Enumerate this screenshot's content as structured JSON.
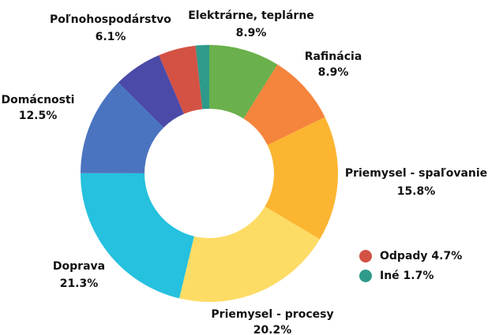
{
  "chart_data": {
    "type": "donut",
    "categories": [
      "Elektrárne, teplárne",
      "Rafinácia",
      "Priemysel - spaľovanie",
      "Priemysel - procesy",
      "Doprava",
      "Domácnosti",
      "Poľnohospodárstvo",
      "Odpady",
      "Iné"
    ],
    "values": [
      8.9,
      8.9,
      15.8,
      20.2,
      21.3,
      12.5,
      6.1,
      4.7,
      1.7
    ],
    "value_labels": [
      "8.9%",
      "8.9%",
      "15.8%",
      "20.2%",
      "21.3%",
      "12.5%",
      "6.1%",
      "4.7%",
      "1.7%"
    ],
    "colors": [
      "#6ab04c",
      "#f5843c",
      "#fbb531",
      "#fddc66",
      "#25c1de",
      "#4a74c0",
      "#4b4aa8",
      "#d35244",
      "#2e9a8a"
    ]
  }
}
